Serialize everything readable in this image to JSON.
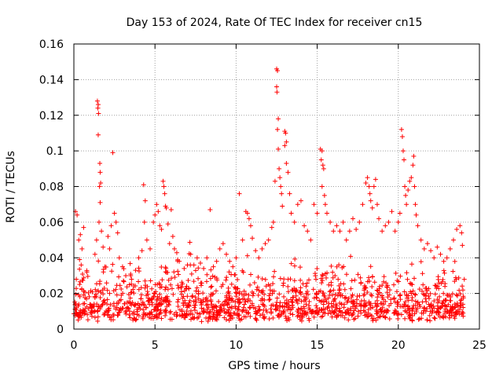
{
  "chart_data": {
    "type": "scatter",
    "title": "Day 153 of 2024, Rate Of TEC Index for receiver cn15",
    "xlabel": "GPS time / hours",
    "ylabel": "ROTI / TECUs",
    "xlim": [
      0,
      25
    ],
    "ylim": [
      0,
      0.16
    ],
    "xticks": [
      0,
      5,
      10,
      15,
      20,
      25
    ],
    "xtick_labels": [
      "0",
      "5",
      "10",
      "15",
      "20",
      "25"
    ],
    "yticks": [
      0,
      0.02,
      0.04,
      0.06,
      0.08,
      0.1,
      0.12,
      0.14,
      0.16
    ],
    "ytick_labels": [
      "0",
      "0.02",
      "0.04",
      "0.06",
      "0.08",
      "0.1",
      "0.12",
      "0.14",
      "0.16"
    ],
    "grid": true,
    "marker": "+",
    "color": "#ff0000",
    "series": [
      {
        "name": "ROTI",
        "points": [
          [
            0.1,
            0.066
          ],
          [
            0.2,
            0.064
          ],
          [
            0.3,
            0.05
          ],
          [
            0.4,
            0.053
          ],
          [
            0.35,
            0.039
          ],
          [
            0.5,
            0.045
          ],
          [
            0.6,
            0.057
          ],
          [
            0.8,
            0.032
          ],
          [
            0.15,
            0.028
          ],
          [
            0.45,
            0.036
          ],
          [
            1.45,
            0.128
          ],
          [
            1.5,
            0.126
          ],
          [
            1.48,
            0.124
          ],
          [
            1.52,
            0.121
          ],
          [
            1.5,
            0.109
          ],
          [
            1.6,
            0.093
          ],
          [
            1.62,
            0.088
          ],
          [
            1.65,
            0.082
          ],
          [
            1.58,
            0.08
          ],
          [
            1.62,
            0.071
          ],
          [
            1.55,
            0.06
          ],
          [
            1.7,
            0.055
          ],
          [
            1.8,
            0.046
          ],
          [
            1.4,
            0.05
          ],
          [
            1.3,
            0.042
          ],
          [
            2.1,
            0.052
          ],
          [
            2.3,
            0.058
          ],
          [
            2.4,
            0.099
          ],
          [
            2.5,
            0.065
          ],
          [
            2.6,
            0.06
          ],
          [
            2.7,
            0.054
          ],
          [
            2.2,
            0.045
          ],
          [
            2.8,
            0.04
          ],
          [
            3.0,
            0.035
          ],
          [
            3.2,
            0.03
          ],
          [
            3.5,
            0.03
          ],
          [
            3.8,
            0.033
          ],
          [
            4.0,
            0.04
          ],
          [
            4.2,
            0.044
          ],
          [
            4.3,
            0.081
          ],
          [
            4.4,
            0.072
          ],
          [
            4.35,
            0.06
          ],
          [
            4.5,
            0.05
          ],
          [
            4.7,
            0.045
          ],
          [
            4.9,
            0.06
          ],
          [
            5.0,
            0.064
          ],
          [
            5.1,
            0.07
          ],
          [
            5.2,
            0.066
          ],
          [
            5.3,
            0.058
          ],
          [
            5.4,
            0.056
          ],
          [
            5.5,
            0.083
          ],
          [
            5.55,
            0.08
          ],
          [
            5.6,
            0.076
          ],
          [
            5.65,
            0.069
          ],
          [
            5.7,
            0.068
          ],
          [
            5.8,
            0.059
          ],
          [
            5.9,
            0.048
          ],
          [
            6.0,
            0.067
          ],
          [
            6.1,
            0.052
          ],
          [
            6.2,
            0.045
          ],
          [
            6.5,
            0.038
          ],
          [
            6.8,
            0.034
          ],
          [
            7.0,
            0.036
          ],
          [
            7.2,
            0.042
          ],
          [
            7.4,
            0.036
          ],
          [
            7.6,
            0.04
          ],
          [
            7.8,
            0.037
          ],
          [
            8.0,
            0.034
          ],
          [
            8.2,
            0.04
          ],
          [
            8.4,
            0.067
          ],
          [
            8.6,
            0.035
          ],
          [
            8.8,
            0.038
          ],
          [
            9.0,
            0.045
          ],
          [
            9.2,
            0.048
          ],
          [
            9.4,
            0.042
          ],
          [
            9.6,
            0.038
          ],
          [
            9.8,
            0.035
          ],
          [
            10.0,
            0.04
          ],
          [
            10.2,
            0.076
          ],
          [
            10.4,
            0.05
          ],
          [
            10.6,
            0.066
          ],
          [
            10.7,
            0.065
          ],
          [
            10.8,
            0.062
          ],
          [
            10.9,
            0.058
          ],
          [
            11.0,
            0.051
          ],
          [
            11.2,
            0.044
          ],
          [
            11.4,
            0.04
          ],
          [
            11.6,
            0.045
          ],
          [
            11.8,
            0.048
          ],
          [
            12.0,
            0.05
          ],
          [
            12.2,
            0.057
          ],
          [
            12.3,
            0.06
          ],
          [
            12.4,
            0.083
          ],
          [
            12.5,
            0.146
          ],
          [
            12.55,
            0.145
          ],
          [
            12.5,
            0.136
          ],
          [
            12.52,
            0.133
          ],
          [
            12.6,
            0.118
          ],
          [
            12.55,
            0.112
          ],
          [
            12.6,
            0.101
          ],
          [
            12.65,
            0.09
          ],
          [
            12.7,
            0.085
          ],
          [
            12.75,
            0.08
          ],
          [
            12.8,
            0.076
          ],
          [
            12.85,
            0.069
          ],
          [
            13.0,
            0.111
          ],
          [
            13.05,
            0.11
          ],
          [
            13.1,
            0.105
          ],
          [
            13.0,
            0.103
          ],
          [
            13.1,
            0.093
          ],
          [
            13.2,
            0.088
          ],
          [
            13.3,
            0.076
          ],
          [
            13.4,
            0.065
          ],
          [
            13.6,
            0.06
          ],
          [
            13.8,
            0.07
          ],
          [
            14.0,
            0.072
          ],
          [
            14.2,
            0.058
          ],
          [
            14.4,
            0.055
          ],
          [
            14.6,
            0.05
          ],
          [
            14.8,
            0.07
          ],
          [
            15.0,
            0.065
          ],
          [
            15.2,
            0.101
          ],
          [
            15.3,
            0.1
          ],
          [
            15.25,
            0.095
          ],
          [
            15.35,
            0.092
          ],
          [
            15.4,
            0.09
          ],
          [
            15.3,
            0.08
          ],
          [
            15.45,
            0.075
          ],
          [
            15.5,
            0.07
          ],
          [
            15.6,
            0.065
          ],
          [
            15.8,
            0.06
          ],
          [
            16.0,
            0.055
          ],
          [
            16.2,
            0.058
          ],
          [
            16.4,
            0.055
          ],
          [
            16.6,
            0.06
          ],
          [
            16.8,
            0.05
          ],
          [
            17.0,
            0.055
          ],
          [
            17.2,
            0.062
          ],
          [
            17.4,
            0.056
          ],
          [
            17.6,
            0.06
          ],
          [
            17.8,
            0.07
          ],
          [
            18.0,
            0.082
          ],
          [
            18.1,
            0.085
          ],
          [
            18.2,
            0.08
          ],
          [
            18.25,
            0.076
          ],
          [
            18.3,
            0.072
          ],
          [
            18.4,
            0.068
          ],
          [
            18.5,
            0.08
          ],
          [
            18.6,
            0.084
          ],
          [
            18.7,
            0.07
          ],
          [
            18.8,
            0.062
          ],
          [
            19.0,
            0.055
          ],
          [
            19.2,
            0.058
          ],
          [
            19.4,
            0.06
          ],
          [
            19.6,
            0.066
          ],
          [
            19.8,
            0.055
          ],
          [
            20.0,
            0.06
          ],
          [
            20.1,
            0.065
          ],
          [
            20.2,
            0.112
          ],
          [
            20.25,
            0.108
          ],
          [
            20.3,
            0.1
          ],
          [
            20.35,
            0.095
          ],
          [
            20.4,
            0.08
          ],
          [
            20.45,
            0.075
          ],
          [
            20.5,
            0.07
          ],
          [
            20.6,
            0.078
          ],
          [
            20.7,
            0.083
          ],
          [
            20.8,
            0.085
          ],
          [
            20.9,
            0.092
          ],
          [
            20.95,
            0.097
          ],
          [
            21.0,
            0.08
          ],
          [
            21.05,
            0.07
          ],
          [
            21.1,
            0.064
          ],
          [
            21.2,
            0.058
          ],
          [
            21.4,
            0.05
          ],
          [
            21.6,
            0.045
          ],
          [
            21.8,
            0.048
          ],
          [
            22.0,
            0.044
          ],
          [
            22.2,
            0.04
          ],
          [
            22.4,
            0.046
          ],
          [
            22.6,
            0.042
          ],
          [
            22.8,
            0.038
          ],
          [
            23.0,
            0.04
          ],
          [
            23.2,
            0.045
          ],
          [
            23.4,
            0.05
          ],
          [
            23.6,
            0.056
          ],
          [
            23.8,
            0.058
          ],
          [
            23.9,
            0.054
          ],
          [
            23.95,
            0.047
          ]
        ]
      }
    ]
  }
}
